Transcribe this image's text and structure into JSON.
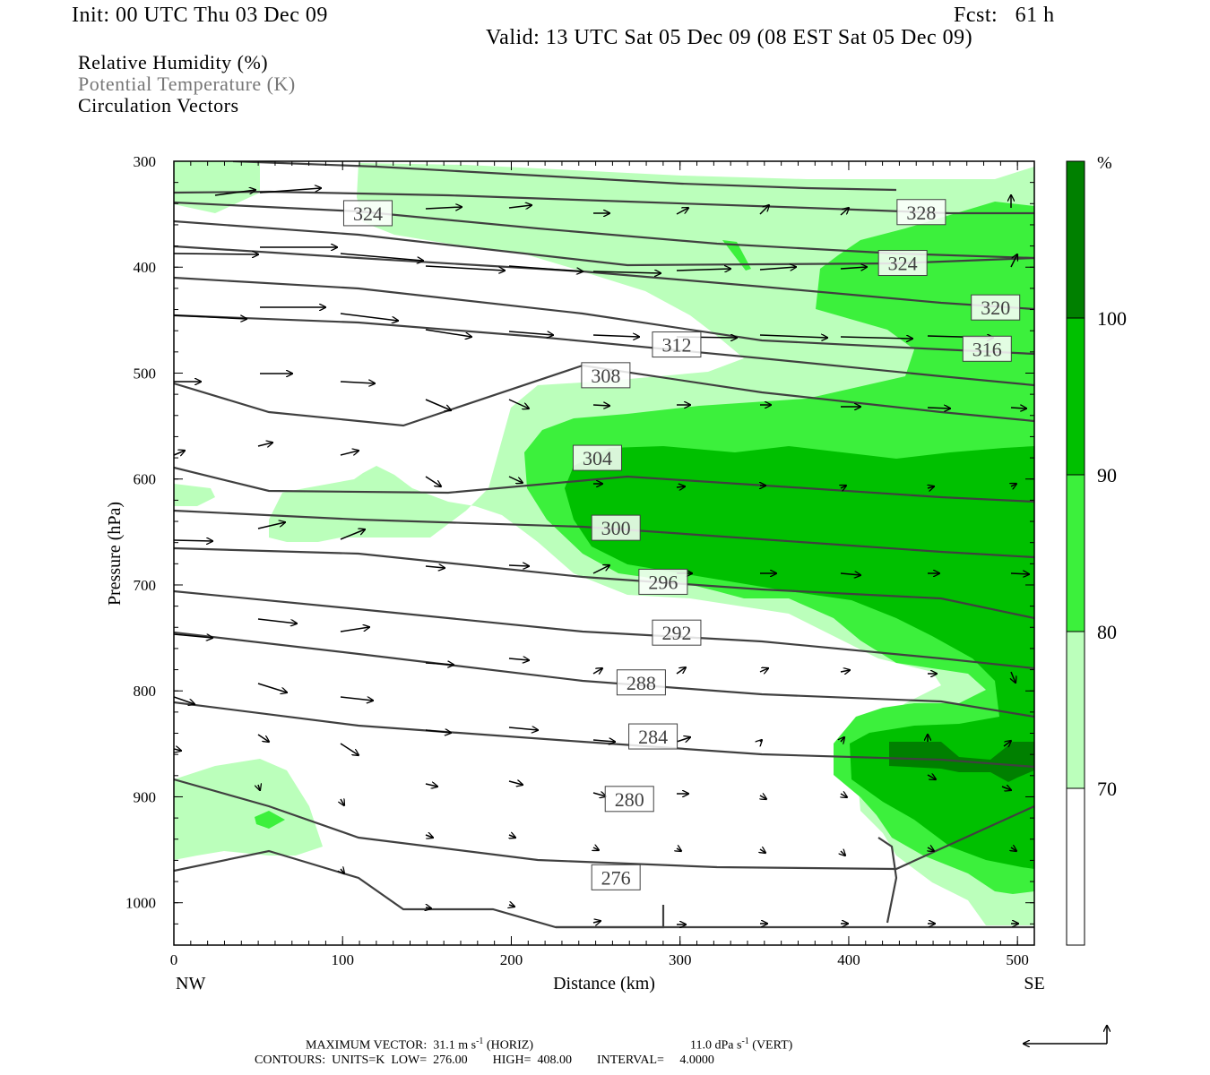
{
  "header": {
    "init": "Init: 00 UTC Thu 03 Dec 09",
    "fcst": "Fcst:   61 h",
    "valid": "Valid: 13 UTC Sat 05 Dec 09 (08 EST Sat 05 Dec 09)"
  },
  "legend": {
    "line1": "Relative Humidity (%)",
    "line2": "Potential Temperature (K)",
    "line3": "Circulation Vectors"
  },
  "footer": {
    "max_vector_label": "MAXIMUM VECTOR:",
    "horiz_value": "31.1 m s",
    "horiz_unit": "(HORIZ)",
    "vert_value": "11.0 dPa s",
    "vert_unit": "(VERT)",
    "exponent": "-1",
    "contours": "CONTOURS:  UNITS=K  LOW=  276.00        HIGH=  408.00        INTERVAL=     4.0000"
  },
  "colors": {
    "rh_70": "#bbffbb",
    "rh_80": "#3cf03c",
    "rh_90": "#00c000",
    "rh_100": "#008000",
    "contour": "#404040"
  },
  "chart_data": {
    "type": "cross-section",
    "xlabel": "Distance (km)",
    "ylabel": "Pressure (hPa)",
    "x_ticks": [
      0,
      100,
      200,
      300,
      400,
      500
    ],
    "y_ticks": [
      300,
      400,
      500,
      600,
      700,
      800,
      900,
      1000
    ],
    "xlim": [
      0,
      510
    ],
    "ylim": [
      300,
      1040
    ],
    "x_end_labels": {
      "left": "NW",
      "right": "SE"
    },
    "colorbar": {
      "unit": "%",
      "levels": [
        70,
        80,
        90,
        100
      ]
    },
    "contour_labels": [
      {
        "value": "324",
        "x": 115,
        "p": 349
      },
      {
        "value": "328",
        "x": 443,
        "p": 348
      },
      {
        "value": "324",
        "x": 432,
        "p": 396
      },
      {
        "value": "320",
        "x": 487,
        "p": 438
      },
      {
        "value": "316",
        "x": 482,
        "p": 477
      },
      {
        "value": "312",
        "x": 298,
        "p": 473
      },
      {
        "value": "308",
        "x": 256,
        "p": 502
      },
      {
        "value": "304",
        "x": 251,
        "p": 580
      },
      {
        "value": "300",
        "x": 262,
        "p": 646
      },
      {
        "value": "296",
        "x": 290,
        "p": 697
      },
      {
        "value": "292",
        "x": 298,
        "p": 745
      },
      {
        "value": "288",
        "x": 277,
        "p": 792
      },
      {
        "value": "284",
        "x": 284,
        "p": 843
      },
      {
        "value": "280",
        "x": 270,
        "p": 902
      },
      {
        "value": "276",
        "x": 262,
        "p": 976
      }
    ]
  }
}
